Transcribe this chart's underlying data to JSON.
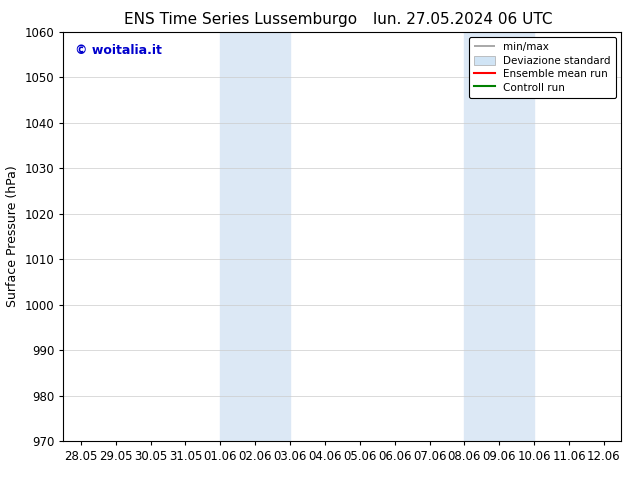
{
  "title_left": "ENS Time Series Lussemburgo",
  "title_right": "lun. 27.05.2024 06 UTC",
  "ylabel": "Surface Pressure (hPa)",
  "ylim": [
    970,
    1060
  ],
  "yticks": [
    970,
    980,
    990,
    1000,
    1010,
    1020,
    1030,
    1040,
    1050,
    1060
  ],
  "xtick_labels": [
    "28.05",
    "29.05",
    "30.05",
    "31.05",
    "01.06",
    "02.06",
    "03.06",
    "04.06",
    "05.06",
    "06.06",
    "07.06",
    "08.06",
    "09.06",
    "10.06",
    "11.06",
    "12.06"
  ],
  "watermark": "© woitalia.it",
  "watermark_color": "#0000cc",
  "shaded_bands": [
    {
      "x_start": "01.06",
      "x_end": "03.06"
    },
    {
      "x_start": "08.06",
      "x_end": "10.06"
    }
  ],
  "shade_color": "#dce8f5",
  "background_color": "#ffffff",
  "legend_items": [
    {
      "label": "min/max",
      "color": "#999999",
      "lw": 1.2
    },
    {
      "label": "Deviazione standard",
      "color": "#d0e4f5",
      "lw": 8
    },
    {
      "label": "Ensemble mean run",
      "color": "#ff0000",
      "lw": 1.5
    },
    {
      "label": "Controll run",
      "color": "#008000",
      "lw": 1.5
    }
  ],
  "title_fontsize": 11,
  "tick_fontsize": 8.5,
  "ylabel_fontsize": 9,
  "watermark_fontsize": 9,
  "legend_fontsize": 7.5
}
